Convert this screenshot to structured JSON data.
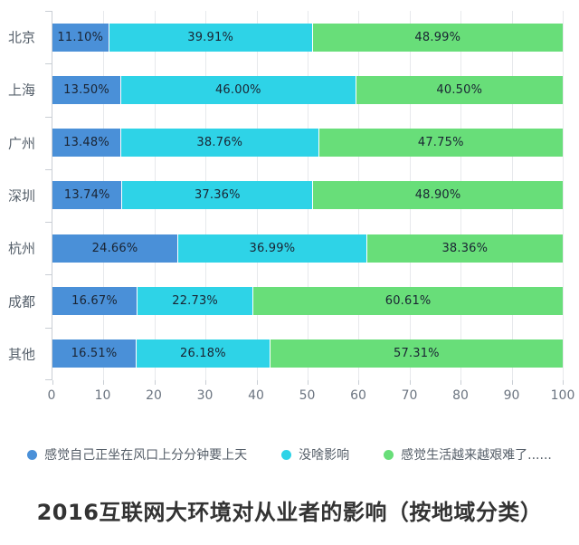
{
  "title": {
    "text": "2016互联网大环境对从业者的影响（按地域分类）"
  },
  "colors": {
    "series_blue": "#4a90d8",
    "series_cyan": "#2ed3e7",
    "series_green": "#68de79",
    "grid": "#e7e9ec",
    "axis": "#c9ced4"
  },
  "chart_data": {
    "type": "bar",
    "orientation": "horizontal",
    "stacked": true,
    "grid": true,
    "legend_position": "bottom",
    "title": "2016互联网大环境对从业者的影响（按地域分类）",
    "xlabel": "",
    "ylabel": "",
    "xlim": [
      0,
      100
    ],
    "xticks": [
      "0",
      "10",
      "20",
      "30",
      "40",
      "50",
      "60",
      "70",
      "80",
      "90",
      "100"
    ],
    "categories": [
      "北京",
      "上海",
      "广州",
      "深圳",
      "杭州",
      "成都",
      "其他"
    ],
    "series": [
      {
        "name": "感觉自己正坐在风口上分分钟要上天",
        "color": "#4a90d8",
        "values": [
          11.1,
          13.5,
          13.48,
          13.74,
          24.66,
          16.67,
          16.51
        ],
        "labels": [
          "11.10%",
          "13.50%",
          "13.48%",
          "13.74%",
          "24.66%",
          "16.67%",
          "16.51%"
        ]
      },
      {
        "name": "没啥影响",
        "color": "#2ed3e7",
        "values": [
          39.91,
          46.0,
          38.76,
          37.36,
          36.99,
          22.73,
          26.18
        ],
        "labels": [
          "39.91%",
          "46.00%",
          "38.76%",
          "37.36%",
          "36.99%",
          "22.73%",
          "26.18%"
        ]
      },
      {
        "name": "感觉生活越来越艰难了......",
        "color": "#68de79",
        "values": [
          48.99,
          40.5,
          47.75,
          48.9,
          38.36,
          60.61,
          57.31
        ],
        "labels": [
          "48.99%",
          "40.50%",
          "47.75%",
          "48.90%",
          "38.36%",
          "60.61%",
          "57.31%"
        ]
      }
    ]
  }
}
